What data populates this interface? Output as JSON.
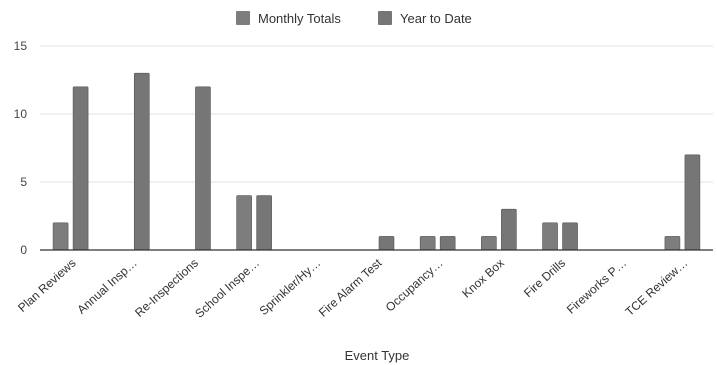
{
  "chart_data": {
    "type": "bar",
    "title": "",
    "xlabel": "Event Type",
    "ylabel": "",
    "ylim": [
      0,
      15
    ],
    "yticks": [
      0,
      5,
      10,
      15
    ],
    "grid": true,
    "legend_position": "top-center",
    "categories": [
      "Plan Reviews",
      "Annual Insp…",
      "Re-Inspections",
      "School Inspe…",
      "Sprinkler/Hy…",
      "Fire Alarm Test",
      "Occupancy…",
      "Knox Box",
      "Fire Drills",
      "Fireworks P…",
      "TCE Review…"
    ],
    "series": [
      {
        "name": "Monthly Totals",
        "color": "#7d7d7d",
        "values": [
          2,
          0,
          0,
          4,
          0,
          0,
          1,
          1,
          2,
          0,
          1
        ]
      },
      {
        "name": "Year to Date",
        "color": "#767676",
        "values": [
          12,
          13,
          12,
          4,
          0,
          1,
          1,
          3,
          2,
          0,
          7
        ]
      }
    ]
  }
}
